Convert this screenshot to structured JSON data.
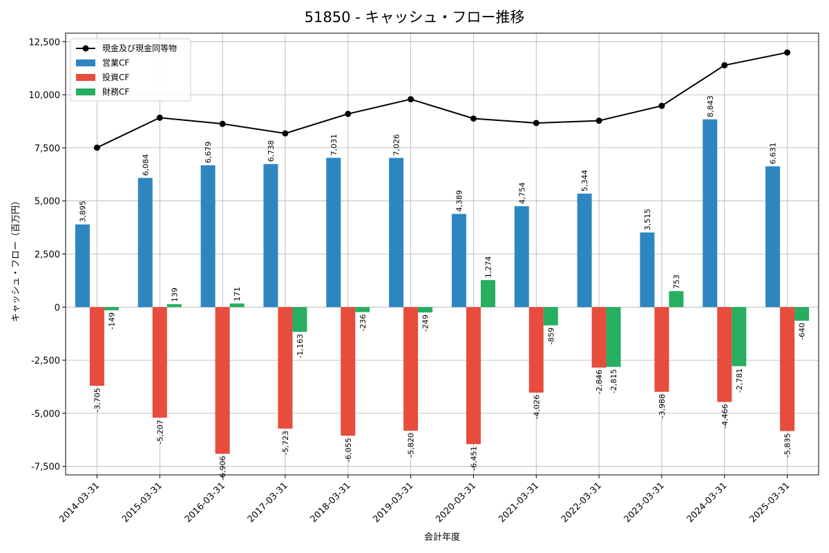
{
  "chart_data": {
    "type": "bar",
    "title": "51850 - キャッシュ・フロー推移",
    "xlabel": "会計年度",
    "ylabel": "キャッシュ・フロー（百万円）",
    "categories": [
      "2014-03-31",
      "2015-03-31",
      "2016-03-31",
      "2017-03-31",
      "2018-03-31",
      "2019-03-31",
      "2020-03-31",
      "2021-03-31",
      "2022-03-31",
      "2023-03-31",
      "2024-03-31",
      "2025-03-31"
    ],
    "ylim": [
      -7900,
      12900
    ],
    "yticks": [
      -7500,
      -5000,
      -2500,
      0,
      2500,
      5000,
      7500,
      10000,
      12500
    ],
    "ytick_labels": [
      "-7,500",
      "-5,000",
      "-2,500",
      "0",
      "2,500",
      "5,000",
      "7,500",
      "10,000",
      "12,500"
    ],
    "grid": true,
    "legend_position": "top-left",
    "series": [
      {
        "name": "営業CF",
        "kind": "bar",
        "color": "#2e86c1",
        "values": [
          3895,
          6084,
          6679,
          6738,
          7031,
          7026,
          4389,
          4754,
          5344,
          3515,
          8843,
          6631
        ],
        "labels": [
          "3,895",
          "6,084",
          "6,679",
          "6,738",
          "7,031",
          "7,026",
          "4,389",
          "4,754",
          "5,344",
          "3,515",
          "8,843",
          "6,631"
        ]
      },
      {
        "name": "投資CF",
        "kind": "bar",
        "color": "#e74c3c",
        "values": [
          -3705,
          -5207,
          -6906,
          -5723,
          -6055,
          -5820,
          -6451,
          -4026,
          -2846,
          -3988,
          -4466,
          -5835
        ],
        "labels": [
          "-3,705",
          "-5,207",
          "-6,906",
          "-5,723",
          "-6,055",
          "-5,820",
          "-6,451",
          "-4,026",
          "-2,846",
          "-3,988",
          "-4,466",
          "-5,835"
        ]
      },
      {
        "name": "財務CF",
        "kind": "bar",
        "color": "#27ae60",
        "values": [
          -149,
          139,
          171,
          -1163,
          -236,
          -249,
          1274,
          -859,
          -2815,
          753,
          -2781,
          -640
        ],
        "labels": [
          "-149",
          "139",
          "171",
          "-1,163",
          "-236",
          "-249",
          "1,274",
          "-859",
          "-2,815",
          "753",
          "-2,781",
          "-640"
        ]
      },
      {
        "name": "現金及び現金同等物",
        "kind": "line",
        "color": "#000000",
        "values": [
          7510,
          8920,
          8630,
          8180,
          9100,
          9790,
          8880,
          8670,
          8780,
          9480,
          11390,
          11990
        ]
      }
    ]
  }
}
